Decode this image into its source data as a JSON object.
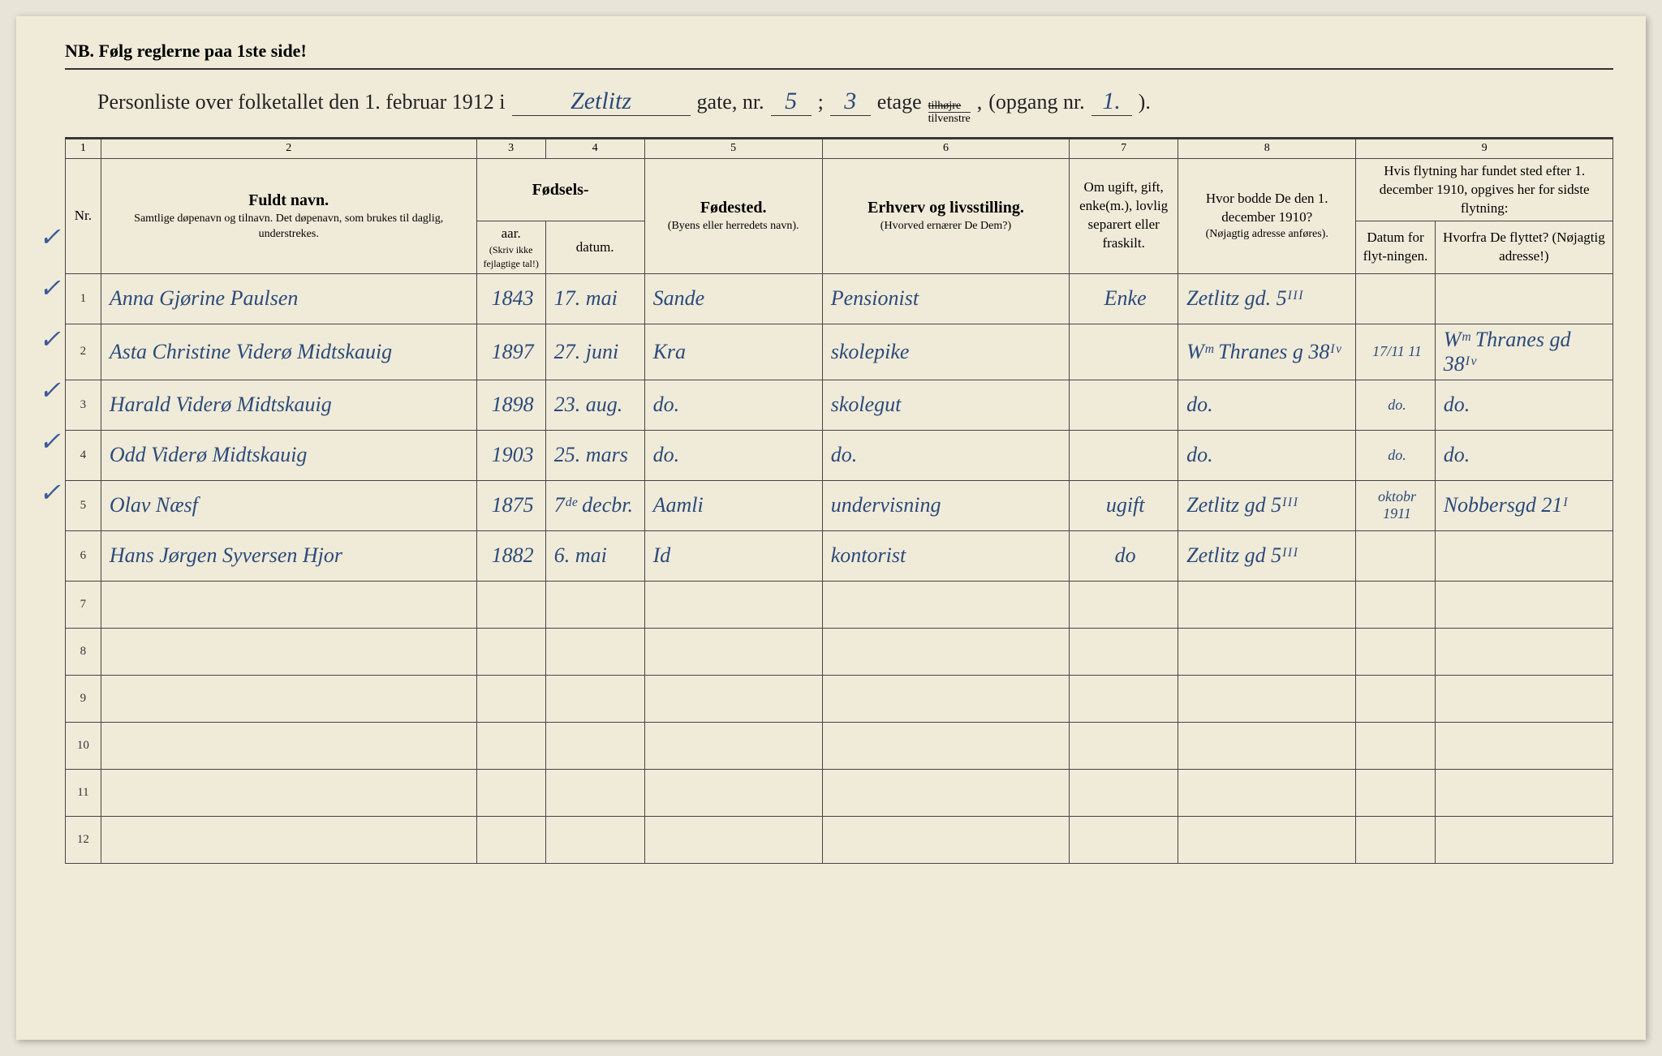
{
  "header": {
    "nb_text": "NB.  Følg reglerne paa 1ste side!",
    "title_prefix": "Personliste over folketallet den 1. februar 1912 i",
    "street_name": "Zetlitz",
    "gate_label": "gate, nr.",
    "gate_nr": "5",
    "semicolon": ";",
    "etage_nr": "3",
    "etage_label": "etage",
    "side_top": "tilhøjre",
    "side_bottom": "tilvenstre",
    "opgang_label": "(opgang nr.",
    "opgang_nr": "1.",
    "opgang_close": ")."
  },
  "column_numbers": [
    "1",
    "2",
    "3",
    "4",
    "5",
    "6",
    "7",
    "8",
    "9"
  ],
  "headers": {
    "nr": "Nr.",
    "name_main": "Fuldt navn.",
    "name_sub": "Samtlige døpenavn og tilnavn. Det døpenavn, som brukes til daglig, understrekes.",
    "birth_main": "Fødsels-",
    "birth_year": "aar.",
    "birth_date": "datum.",
    "birth_note": "(Skriv ikke fejlagtige tal!)",
    "birthplace_main": "Fødested.",
    "birthplace_sub": "(Byens eller herredets navn).",
    "occupation_main": "Erhverv og livsstilling.",
    "occupation_sub": "(Hvorved ernærer De Dem?)",
    "marital": "Om ugift, gift, enke(m.), lovlig separert eller fraskilt.",
    "residence_main": "Hvor bodde De den 1. december 1910?",
    "residence_sub": "(Nøjagtig adresse anføres).",
    "move_main": "Hvis flytning har fundet sted efter 1. december 1910, opgives her for sidste flytning:",
    "move_date": "Datum for flyt-ningen.",
    "move_from": "Hvorfra De flyttet? (Nøjagtig adresse!)"
  },
  "rows": [
    {
      "nr": "1",
      "name": "Anna Gjørine Paulsen",
      "year": "1843",
      "date": "17. mai",
      "birthplace": "Sande",
      "occupation": "Pensionist",
      "marital": "Enke",
      "residence": "Zetlitz gd. 5ᴵᴵᴵ",
      "movedate": "",
      "movefrom": ""
    },
    {
      "nr": "2",
      "name": "Asta Christine Viderø Midtskauig",
      "year": "1897",
      "date": "27. juni",
      "birthplace": "Kra",
      "occupation": "skolepike",
      "marital": "",
      "residence": "Wᵐ Thranes g 38ᴵᵛ",
      "movedate": "17/11 11",
      "movefrom": "Wᵐ Thranes gd 38ᴵᵛ"
    },
    {
      "nr": "3",
      "name": "Harald Viderø Midtskauig",
      "year": "1898",
      "date": "23. aug.",
      "birthplace": "do.",
      "occupation": "skolegut",
      "marital": "",
      "residence": "do.",
      "movedate": "do.",
      "movefrom": "do."
    },
    {
      "nr": "4",
      "name": "Odd Viderø Midtskauig",
      "year": "1903",
      "date": "25. mars",
      "birthplace": "do.",
      "occupation": "do.",
      "marital": "",
      "residence": "do.",
      "movedate": "do.",
      "movefrom": "do."
    },
    {
      "nr": "5",
      "name": "Olav Næsf",
      "year": "1875",
      "date": "7ᵈᵉ decbr.",
      "birthplace": "Aamli",
      "occupation": "undervisning",
      "marital": "ugift",
      "residence": "Zetlitz gd 5ᴵᴵᴵ",
      "movedate": "oktobr 1911",
      "movefrom": "Nobbersgd 21ᴵ"
    },
    {
      "nr": "6",
      "name": "Hans Jørgen Syversen Hjor",
      "year": "1882",
      "date": "6. mai",
      "birthplace": "Id",
      "occupation": "kontorist",
      "marital": "do",
      "residence": "Zetlitz gd 5ᴵᴵᴵ",
      "movedate": "",
      "movefrom": ""
    }
  ],
  "empty_rows": [
    "7",
    "8",
    "9",
    "10",
    "11",
    "12"
  ],
  "colors": {
    "paper": "#f0ebd9",
    "ink_printed": "#222222",
    "ink_hand": "#2b4a7a",
    "border": "#444444"
  }
}
